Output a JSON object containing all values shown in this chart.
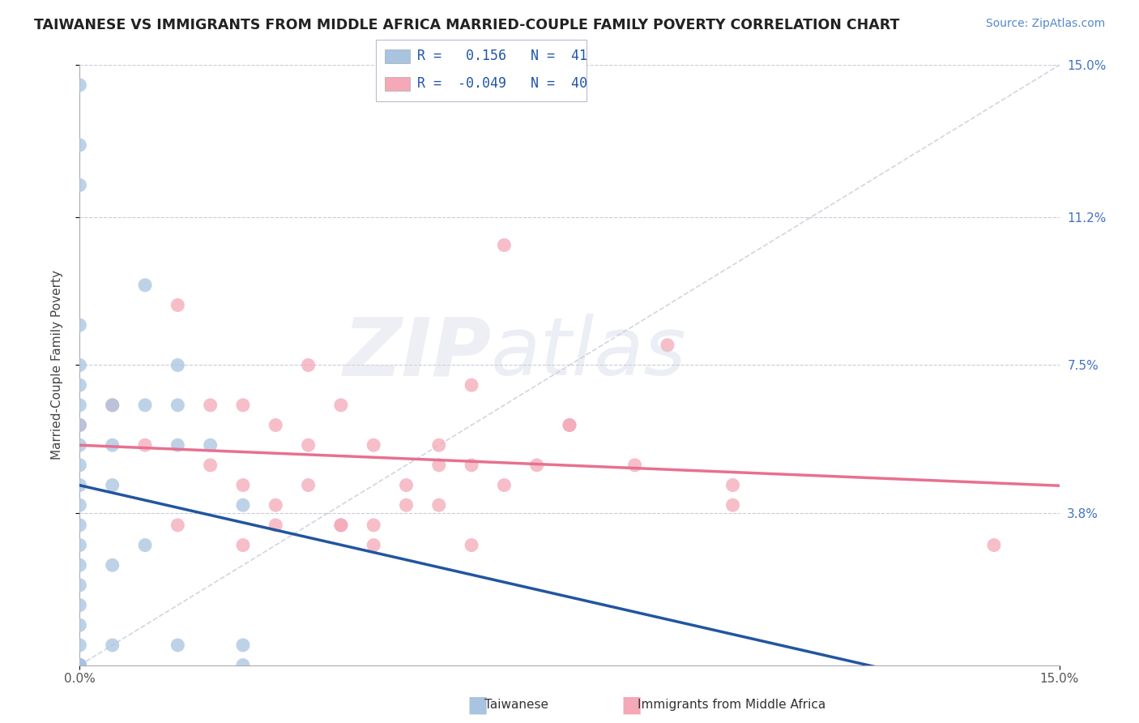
{
  "title": "TAIWANESE VS IMMIGRANTS FROM MIDDLE AFRICA MARRIED-COUPLE FAMILY POVERTY CORRELATION CHART",
  "source": "Source: ZipAtlas.com",
  "ylabel": "Married-Couple Family Poverty",
  "ytick_labels": [
    "3.8%",
    "7.5%",
    "11.2%",
    "15.0%"
  ],
  "ytick_values": [
    3.8,
    7.5,
    11.2,
    15.0
  ],
  "xlim": [
    0.0,
    15.0
  ],
  "ylim": [
    0.0,
    15.0
  ],
  "r_taiwanese": 0.156,
  "n_taiwanese": 41,
  "r_immigrants": -0.049,
  "n_immigrants": 40,
  "taiwanese_color": "#a8c4e0",
  "immigrants_color": "#f4a8b8",
  "taiwanese_line_color": "#2255a0",
  "immigrants_line_color": "#e87090",
  "diagonal_color": "#c0c4d0",
  "background_color": "#ffffff",
  "taiwanese_x": [
    0.0,
    0.0,
    0.0,
    0.0,
    0.0,
    0.0,
    0.0,
    0.0,
    0.0,
    0.0,
    0.0,
    0.0,
    0.0,
    0.0,
    0.0,
    0.0,
    0.0,
    0.0,
    0.0,
    0.0,
    0.0,
    0.0,
    0.0,
    0.0,
    0.0,
    0.5,
    0.5,
    0.5,
    0.5,
    0.5,
    1.0,
    1.0,
    1.0,
    1.5,
    1.5,
    1.5,
    1.5,
    2.0,
    2.5,
    2.5,
    2.5
  ],
  "taiwanese_y": [
    14.5,
    13.0,
    12.0,
    8.5,
    7.5,
    7.0,
    6.5,
    6.0,
    5.5,
    5.0,
    4.5,
    4.0,
    3.5,
    3.0,
    2.5,
    2.0,
    1.5,
    1.0,
    0.5,
    0.0,
    0.0,
    0.0,
    0.0,
    0.0,
    0.0,
    6.5,
    5.5,
    4.5,
    2.5,
    0.5,
    9.5,
    6.5,
    3.0,
    7.5,
    6.5,
    5.5,
    0.5,
    5.5,
    4.0,
    0.5,
    0.0
  ],
  "immigrants_x": [
    0.0,
    0.5,
    1.0,
    1.5,
    2.0,
    2.5,
    2.5,
    3.0,
    3.0,
    3.5,
    3.5,
    4.0,
    4.0,
    4.5,
    4.5,
    5.0,
    5.5,
    5.5,
    6.0,
    6.0,
    6.5,
    7.0,
    7.5,
    8.5,
    9.0,
    10.0,
    14.0,
    1.5,
    2.0,
    2.5,
    3.0,
    3.5,
    4.0,
    4.5,
    5.0,
    5.5,
    6.0,
    6.5,
    7.5,
    10.0
  ],
  "immigrants_y": [
    6.0,
    6.5,
    5.5,
    9.0,
    6.5,
    6.5,
    3.0,
    6.0,
    3.5,
    7.5,
    5.5,
    6.5,
    3.5,
    5.5,
    3.5,
    4.5,
    5.5,
    4.0,
    5.0,
    7.0,
    10.5,
    5.0,
    6.0,
    5.0,
    8.0,
    4.0,
    3.0,
    3.5,
    5.0,
    4.5,
    4.0,
    4.5,
    3.5,
    3.0,
    4.0,
    5.0,
    3.0,
    4.5,
    6.0,
    4.5
  ]
}
